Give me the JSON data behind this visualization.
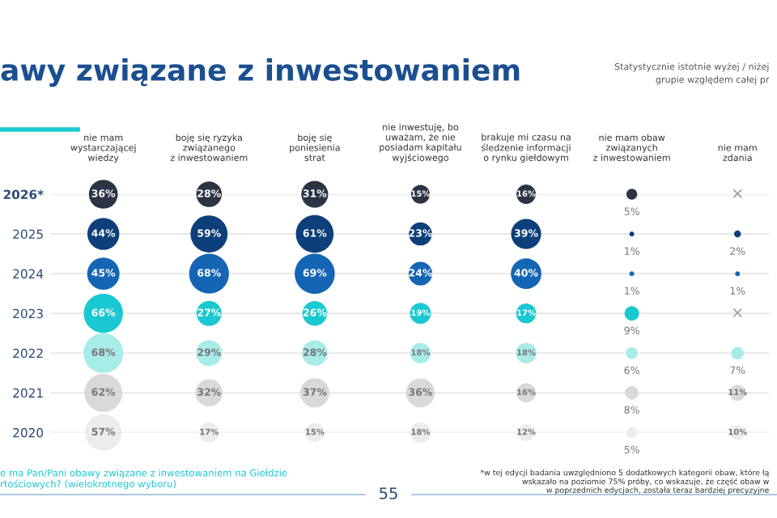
{
  "chart_data": {
    "type": "bubble",
    "title": "awy związane z inwestowaniem",
    "categories": [
      "nie mam\nwystarczającej\nwiedzy",
      "boję się ryzyka\nzwiązanego\nz inwestowaniem",
      "boję się\nponiesienia\nstrat",
      "nie inwestuję, bo\nuważam, że nie\nposiadam kapitału\nwyjściowego",
      "brakuje mi czasu na\nśledzenie informacji\no rynku giełdowym",
      "nie mam obaw\nzwiązanych\nz inwestowaniem",
      "nie mam\nzdania"
    ],
    "series": [
      {
        "color": "#2b3445",
        "values": [
          2026,
          2026,
          2026,
          2026,
          2026,
          2026,
          null
        ],
        "sizes": [
          36,
          28,
          31,
          15,
          16,
          5,
          null
        ],
        "value_labels": [
          "36%",
          "28%",
          "31%",
          "15%",
          "16%",
          "5%",
          "×"
        ]
      },
      {
        "color": "#0d3f7a",
        "values": [
          2025,
          2025,
          2025,
          2025,
          2025,
          2025,
          2025
        ],
        "sizes": [
          44,
          59,
          61,
          23,
          39,
          1,
          2
        ],
        "value_labels": [
          "44%",
          "59%",
          "61%",
          "23%",
          "39%",
          "1%",
          "2%"
        ]
      },
      {
        "color": "#1565b5",
        "values": [
          2024,
          2024,
          2024,
          2024,
          2024,
          2024,
          2024
        ],
        "sizes": [
          45,
          68,
          69,
          24,
          40,
          1,
          1
        ],
        "value_labels": [
          "45%",
          "68%",
          "69%",
          "24%",
          "40%",
          "1%",
          "1%"
        ]
      },
      {
        "color": "#1ac8d2",
        "values": [
          2023,
          2023,
          2023,
          2023,
          2023,
          2023,
          null
        ],
        "sizes": [
          66,
          27,
          26,
          19,
          17,
          9,
          null
        ],
        "value_labels": [
          "66%",
          "27%",
          "26%",
          "19%",
          "17%",
          "9%",
          "×"
        ]
      },
      {
        "color": "#a8ece8",
        "values": [
          2022,
          2022,
          2022,
          2022,
          2022,
          2022,
          2022
        ],
        "sizes": [
          68,
          29,
          28,
          18,
          18,
          6,
          7
        ],
        "value_labels": [
          "68%",
          "29%",
          "28%",
          "18%",
          "18%",
          "6%",
          "7%"
        ]
      },
      {
        "color": "#d9d9d9",
        "values": [
          2021,
          2021,
          2021,
          2021,
          2021,
          2021,
          2021
        ],
        "sizes": [
          62,
          32,
          37,
          36,
          16,
          8,
          11
        ],
        "value_labels": [
          "62%",
          "32%",
          "37%",
          "36%",
          "16%",
          "8%",
          "11%"
        ]
      },
      {
        "color": "#ececec",
        "values": [
          2020,
          2020,
          2020,
          2020,
          2020,
          2020,
          2020
        ],
        "sizes": [
          57,
          17,
          15,
          18,
          12,
          5,
          10
        ],
        "value_labels": [
          "57%",
          "17%",
          "15%",
          "18%",
          "12%",
          "5%",
          "10%"
        ]
      }
    ],
    "ylim": [
      2020,
      2026
    ],
    "yticks": [
      2020,
      2021,
      2022,
      2023,
      2024,
      2025,
      {
        "value": 2026,
        "label": "2026*"
      }
    ],
    "grid": "y",
    "annotations": [
      "Statystycznie istotnie wyżej / niżej",
      "grupie względem całej pr",
      "e ma Pan/Pani obawy związane z inwestowaniem na Giełdzie\nrtościowych? (wielokrotnego wyboru)",
      "*w tej edycji badania uwzględniono 5 dodatkowych kategorii obaw, które łą\nwskazało na poziomie 75% próby, co wskazuje, że część obaw w\nw poprzednich edycjach, została teraz bardziej precyzyjne",
      "55"
    ]
  }
}
